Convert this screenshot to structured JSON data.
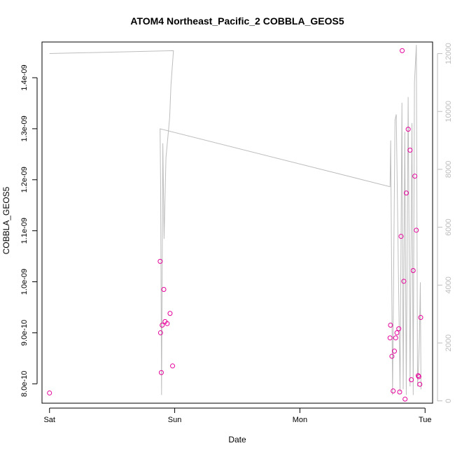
{
  "chart_data": {
    "type": "scatter",
    "title": "ATOM4 Northeast_Pacific_2 COBBLA_GEOS5",
    "xlabel": "Date",
    "ylabel": "COBBLA_GEOS5",
    "x_ticks": [
      "Sat",
      "Sun",
      "Mon",
      "Tue"
    ],
    "y_ticks": [
      "8.0e-10",
      "9.0e-10",
      "1.0e-09",
      "1.1e-09",
      "1.2e-09",
      "1.3e-09",
      "1.4e-09"
    ],
    "y_tick_values": [
      8e-10,
      9e-10,
      1e-09,
      1.1e-09,
      1.2e-09,
      1.3e-09,
      1.4e-09
    ],
    "xlim_days": [
      -0.06,
      3.06
    ],
    "ylim": [
      7.62e-10,
      1.47e-09
    ],
    "colors": {
      "points": "#e5009a",
      "altitude_line": "#bdbdbd"
    },
    "series": [
      {
        "marker": "open-circle",
        "points": [
          {
            "x": 0.0,
            "y": 7.82e-10
          },
          {
            "x": 0.884,
            "y": 1.04e-09
          },
          {
            "x": 0.887,
            "y": 9e-10
          },
          {
            "x": 0.893,
            "y": 8.22e-10
          },
          {
            "x": 0.9,
            "y": 9.15e-10
          },
          {
            "x": 0.913,
            "y": 9.85e-10
          },
          {
            "x": 0.923,
            "y": 9.22e-10
          },
          {
            "x": 0.94,
            "y": 9.18e-10
          },
          {
            "x": 0.963,
            "y": 9.38e-10
          },
          {
            "x": 0.983,
            "y": 8.35e-10
          },
          {
            "x": 2.72,
            "y": 8.9e-10
          },
          {
            "x": 2.724,
            "y": 9.15e-10
          },
          {
            "x": 2.735,
            "y": 8.54e-10
          },
          {
            "x": 2.745,
            "y": 7.86e-10
          },
          {
            "x": 2.755,
            "y": 8.64e-10
          },
          {
            "x": 2.765,
            "y": 8.9e-10
          },
          {
            "x": 2.775,
            "y": 9e-10
          },
          {
            "x": 2.79,
            "y": 9.08e-10
          },
          {
            "x": 2.797,
            "y": 7.84e-10
          },
          {
            "x": 2.808,
            "y": 1.089e-09
          },
          {
            "x": 2.817,
            "y": 1.453e-09
          },
          {
            "x": 2.83,
            "y": 1.001e-09
          },
          {
            "x": 2.84,
            "y": 7.7e-10
          },
          {
            "x": 2.85,
            "y": 1.174e-09
          },
          {
            "x": 2.865,
            "y": 1.299e-09
          },
          {
            "x": 2.88,
            "y": 1.258e-09
          },
          {
            "x": 2.89,
            "y": 8.08e-10
          },
          {
            "x": 2.905,
            "y": 1.022e-09
          },
          {
            "x": 2.918,
            "y": 1.207e-09
          },
          {
            "x": 2.93,
            "y": 1.101e-09
          },
          {
            "x": 2.945,
            "y": 8.16e-10
          },
          {
            "x": 2.95,
            "y": 8.14e-10
          },
          {
            "x": 2.958,
            "y": 7.99e-10
          },
          {
            "x": 2.965,
            "y": 9.3e-10
          }
        ]
      }
    ],
    "secondary_axis": {
      "ticks": [
        "0",
        "2000",
        "4000",
        "6000",
        "8000",
        "10000",
        "12000"
      ],
      "tick_values": [
        0,
        2000,
        4000,
        6000,
        8000,
        10000,
        12000
      ],
      "ylim": [
        -80,
        12400
      ],
      "color": "#bdbdbd",
      "line": [
        [
          0.0,
          12000
        ],
        [
          0.99,
          12100
        ],
        [
          0.97,
          10900
        ],
        [
          0.96,
          9800
        ],
        [
          0.93,
          8400
        ],
        [
          0.915,
          5600
        ],
        [
          0.905,
          8900
        ],
        [
          0.895,
          200
        ],
        [
          0.887,
          7600
        ],
        [
          0.883,
          9400
        ],
        [
          2.72,
          7400
        ],
        [
          2.725,
          9000
        ],
        [
          2.74,
          200
        ],
        [
          2.76,
          9700
        ],
        [
          2.77,
          9900
        ],
        [
          2.8,
          300
        ],
        [
          2.815,
          10300
        ],
        [
          2.825,
          400
        ],
        [
          2.838,
          9300
        ],
        [
          2.85,
          200
        ],
        [
          2.865,
          10500
        ],
        [
          2.88,
          500
        ],
        [
          2.895,
          9600
        ],
        [
          2.905,
          200
        ],
        [
          2.915,
          11000
        ],
        [
          2.93,
          12300
        ],
        [
          2.94,
          500
        ],
        [
          2.948,
          1300
        ],
        [
          2.955,
          2200
        ],
        [
          2.962,
          4100
        ],
        [
          2.967,
          400
        ]
      ]
    }
  }
}
